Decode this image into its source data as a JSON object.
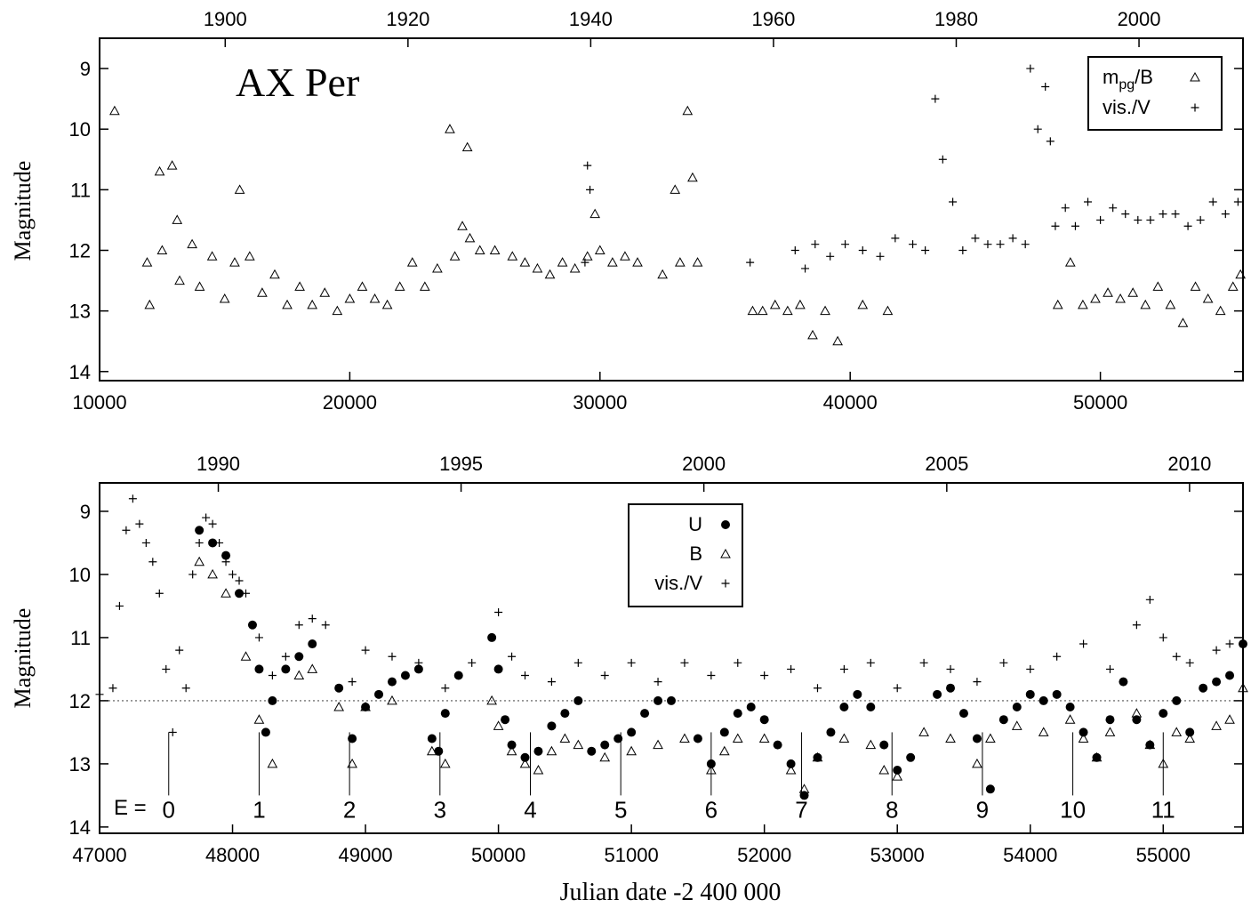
{
  "chart_data": [
    {
      "type": "scatter",
      "title": "AX Per",
      "xlabel": "",
      "ylabel": "Magnitude",
      "xlim": [
        10000,
        55700
      ],
      "ylim": [
        14.15,
        8.5
      ],
      "y_inverted": true,
      "x_ticks": [
        10000,
        20000,
        30000,
        40000,
        50000
      ],
      "y_ticks": [
        9,
        10,
        11,
        12,
        13,
        14
      ],
      "top_axis_ticks": [
        {
          "label": "1900",
          "x": 15021
        },
        {
          "label": "1920",
          "x": 22326
        },
        {
          "label": "1940",
          "x": 29630
        },
        {
          "label": "1960",
          "x": 36935
        },
        {
          "label": "1980",
          "x": 44239
        },
        {
          "label": "2000",
          "x": 51544
        }
      ],
      "legend": {
        "placement": "top-right",
        "entries": [
          {
            "label_main": "m",
            "label_sub": "pg",
            "label_rest": "/B",
            "marker": "triangle"
          },
          {
            "label_main": "vis./V",
            "label_sub": "",
            "label_rest": "",
            "marker": "plus"
          }
        ]
      },
      "series": [
        {
          "name": "mpg/B",
          "marker": "triangle",
          "x": [
            10600,
            11900,
            12000,
            12400,
            12500,
            12900,
            13100,
            13200,
            13700,
            14000,
            14500,
            15000,
            15400,
            15600,
            16000,
            16500,
            17000,
            17500,
            18000,
            18500,
            19000,
            19500,
            20000,
            20500,
            21000,
            21500,
            22000,
            22500,
            23000,
            23500,
            24000,
            24200,
            24500,
            24700,
            24800,
            25200,
            25800,
            26500,
            27000,
            27500,
            28000,
            28500,
            29000,
            29500,
            29800,
            30000,
            30500,
            31000,
            31500,
            32500,
            33000,
            33200,
            33500,
            33700,
            33900,
            36100,
            36500,
            37000,
            37500,
            38000,
            38500,
            39000,
            39500,
            40500,
            41500,
            48300,
            48800,
            49300,
            49800,
            50300,
            50800,
            51300,
            51800,
            52300,
            52800,
            53300,
            53800,
            54300,
            54800,
            55300,
            55600
          ],
          "y": [
            9.7,
            12.2,
            12.9,
            10.7,
            12.0,
            10.6,
            11.5,
            12.5,
            11.9,
            12.6,
            12.1,
            12.8,
            12.2,
            11.0,
            12.1,
            12.7,
            12.4,
            12.9,
            12.6,
            12.9,
            12.7,
            13.0,
            12.8,
            12.6,
            12.8,
            12.9,
            12.6,
            12.2,
            12.6,
            12.3,
            10.0,
            12.1,
            11.6,
            10.3,
            11.8,
            12.0,
            12.0,
            12.1,
            12.2,
            12.3,
            12.4,
            12.2,
            12.3,
            12.1,
            11.4,
            12.0,
            12.2,
            12.1,
            12.2,
            12.4,
            11.0,
            12.2,
            9.7,
            10.8,
            12.2,
            13.0,
            13.0,
            12.9,
            13.0,
            12.9,
            13.4,
            13.0,
            13.5,
            12.9,
            13.0,
            12.9,
            12.2,
            12.9,
            12.8,
            12.7,
            12.8,
            12.7,
            12.9,
            12.6,
            12.9,
            13.2,
            12.6,
            12.8,
            13.0,
            12.6,
            12.4
          ]
        },
        {
          "name": "vis./V",
          "marker": "plus",
          "x": [
            29400,
            29500,
            29600,
            36000,
            37800,
            38200,
            38600,
            39200,
            39800,
            40500,
            41200,
            41800,
            42500,
            43000,
            43400,
            43700,
            44100,
            44500,
            45000,
            45500,
            46000,
            46500,
            47000,
            47200,
            47500,
            47800,
            48000,
            48200,
            48600,
            49000,
            49500,
            50000,
            50500,
            51000,
            51500,
            52000,
            52500,
            53000,
            53500,
            54000,
            54500,
            55000,
            55500
          ],
          "y": [
            12.2,
            10.6,
            11.0,
            12.2,
            12.0,
            12.3,
            11.9,
            12.1,
            11.9,
            12.0,
            12.1,
            11.8,
            11.9,
            12.0,
            9.5,
            10.5,
            11.2,
            12.0,
            11.8,
            11.9,
            11.9,
            11.8,
            11.9,
            9.0,
            10.0,
            9.3,
            10.2,
            11.6,
            11.3,
            11.6,
            11.2,
            11.5,
            11.3,
            11.4,
            11.5,
            11.5,
            11.4,
            11.4,
            11.6,
            11.5,
            11.2,
            11.4,
            11.2
          ]
        }
      ]
    },
    {
      "type": "scatter",
      "title": "",
      "xlabel": "Julian date -2 400 000",
      "ylabel": "Magnitude",
      "xlim": [
        47000,
        55600
      ],
      "ylim": [
        14.1,
        8.55
      ],
      "y_inverted": true,
      "x_ticks": [
        47000,
        48000,
        49000,
        50000,
        51000,
        52000,
        53000,
        54000,
        55000
      ],
      "y_ticks": [
        9,
        10,
        11,
        12,
        13,
        14
      ],
      "top_axis_ticks": [
        {
          "label": "1990",
          "x": 47893
        },
        {
          "label": "1995",
          "x": 49719
        },
        {
          "label": "2000",
          "x": 51545
        },
        {
          "label": "2005",
          "x": 53372
        },
        {
          "label": "2010",
          "x": 55198
        }
      ],
      "reference_line": {
        "y": 12.0,
        "style": "dotted"
      },
      "epoch_prefix": "E =",
      "epochs": [
        {
          "label": "0",
          "x": 47520
        },
        {
          "label": "1",
          "x": 48200
        },
        {
          "label": "2",
          "x": 48880
        },
        {
          "label": "3",
          "x": 49560
        },
        {
          "label": "4",
          "x": 50240
        },
        {
          "label": "5",
          "x": 50920
        },
        {
          "label": "6",
          "x": 51600
        },
        {
          "label": "7",
          "x": 52280
        },
        {
          "label": "8",
          "x": 52960
        },
        {
          "label": "9",
          "x": 53640
        },
        {
          "label": "10",
          "x": 54320
        },
        {
          "label": "11",
          "x": 55000
        }
      ],
      "legend": {
        "placement": "top-center",
        "entries": [
          {
            "label_main": "U",
            "label_sub": "",
            "label_rest": "",
            "marker": "circle"
          },
          {
            "label_main": "B",
            "label_sub": "",
            "label_rest": "",
            "marker": "triangle"
          },
          {
            "label_main": "vis./V",
            "label_sub": "",
            "label_rest": "",
            "marker": "plus"
          }
        ]
      },
      "series": [
        {
          "name": "U",
          "marker": "circle",
          "x": [
            47750,
            47850,
            47950,
            48050,
            48150,
            48200,
            48250,
            48300,
            48400,
            48500,
            48600,
            48800,
            48900,
            49000,
            49100,
            49200,
            49300,
            49400,
            49500,
            49550,
            49600,
            49700,
            49950,
            50000,
            50050,
            50100,
            50200,
            50300,
            50400,
            50500,
            50600,
            50700,
            50800,
            50900,
            51000,
            51100,
            51200,
            51300,
            51500,
            51600,
            51700,
            51800,
            51900,
            52000,
            52100,
            52200,
            52300,
            52400,
            52500,
            52600,
            52700,
            52800,
            52900,
            53000,
            53100,
            53300,
            53400,
            53500,
            53600,
            53700,
            53800,
            53900,
            54000,
            54100,
            54200,
            54300,
            54400,
            54500,
            54600,
            54700,
            54800,
            54900,
            55000,
            55100,
            55200,
            55300,
            55400,
            55500,
            55600
          ],
          "y": [
            9.3,
            9.5,
            9.7,
            10.3,
            10.8,
            11.5,
            12.5,
            12.0,
            11.5,
            11.3,
            11.1,
            11.8,
            12.6,
            12.1,
            11.9,
            11.7,
            11.6,
            11.5,
            12.6,
            12.8,
            12.2,
            11.6,
            11.0,
            11.5,
            12.3,
            12.7,
            12.9,
            12.8,
            12.4,
            12.2,
            12.0,
            12.8,
            12.7,
            12.6,
            12.5,
            12.2,
            12.0,
            12.0,
            12.6,
            13.0,
            12.5,
            12.2,
            12.1,
            12.3,
            12.7,
            13.0,
            13.5,
            12.9,
            12.5,
            12.1,
            11.9,
            12.1,
            12.7,
            13.1,
            12.9,
            11.9,
            11.8,
            12.2,
            12.6,
            13.4,
            12.3,
            12.1,
            11.9,
            12.0,
            11.9,
            12.1,
            12.5,
            12.9,
            12.3,
            11.7,
            12.3,
            12.7,
            12.2,
            12.0,
            12.5,
            11.8,
            11.7,
            11.6,
            11.1
          ]
        },
        {
          "name": "B",
          "marker": "triangle",
          "x": [
            47750,
            47850,
            47950,
            48100,
            48200,
            48300,
            48500,
            48600,
            48800,
            48900,
            49000,
            49200,
            49500,
            49600,
            49950,
            50000,
            50100,
            50200,
            50300,
            50400,
            50500,
            50600,
            50800,
            51000,
            51200,
            51400,
            51600,
            51700,
            51800,
            52000,
            52200,
            52300,
            52400,
            52600,
            52800,
            52900,
            53000,
            53200,
            53400,
            53600,
            53700,
            53900,
            54100,
            54300,
            54400,
            54500,
            54600,
            54800,
            54900,
            55000,
            55100,
            55200,
            55400,
            55500,
            55600
          ],
          "y": [
            9.8,
            10.0,
            10.3,
            11.3,
            12.3,
            13.0,
            11.6,
            11.5,
            12.1,
            13.0,
            12.1,
            12.0,
            12.8,
            13.0,
            12.0,
            12.4,
            12.8,
            13.0,
            13.1,
            12.8,
            12.6,
            12.7,
            12.9,
            12.8,
            12.7,
            12.6,
            13.1,
            12.8,
            12.6,
            12.6,
            13.1,
            13.4,
            12.9,
            12.6,
            12.7,
            13.1,
            13.2,
            12.5,
            12.6,
            13.0,
            12.6,
            12.4,
            12.5,
            12.3,
            12.6,
            12.9,
            12.5,
            12.2,
            12.7,
            13.0,
            12.5,
            12.6,
            12.4,
            12.3,
            11.8
          ]
        },
        {
          "name": "vis./V",
          "marker": "plus",
          "x": [
            47000,
            47100,
            47150,
            47200,
            47250,
            47300,
            47350,
            47400,
            47450,
            47500,
            47550,
            47600,
            47650,
            47700,
            47750,
            47800,
            47850,
            47900,
            47950,
            48000,
            48050,
            48100,
            48150,
            48200,
            48300,
            48400,
            48500,
            48600,
            48700,
            48800,
            48900,
            49000,
            49200,
            49400,
            49600,
            49800,
            50000,
            50100,
            50200,
            50400,
            50600,
            50800,
            51000,
            51200,
            51400,
            51600,
            51800,
            52000,
            52200,
            52400,
            52600,
            52800,
            53000,
            53200,
            53400,
            53600,
            53800,
            54000,
            54200,
            54400,
            54600,
            54800,
            54900,
            55000,
            55100,
            55200,
            55400,
            55500
          ],
          "y": [
            11.9,
            11.8,
            10.5,
            9.3,
            8.8,
            9.2,
            9.5,
            9.8,
            10.3,
            11.5,
            12.5,
            11.2,
            11.8,
            10.0,
            9.5,
            9.1,
            9.2,
            9.5,
            9.8,
            10.0,
            10.1,
            10.3,
            10.8,
            11.0,
            11.6,
            11.3,
            10.8,
            10.7,
            10.8,
            11.8,
            11.7,
            11.2,
            11.3,
            11.4,
            11.8,
            11.4,
            10.6,
            11.3,
            11.6,
            11.7,
            11.4,
            11.6,
            11.4,
            11.7,
            11.4,
            11.6,
            11.4,
            11.6,
            11.5,
            11.8,
            11.5,
            11.4,
            11.8,
            11.4,
            11.5,
            11.7,
            11.4,
            11.5,
            11.3,
            11.1,
            11.5,
            10.8,
            10.4,
            11.0,
            11.3,
            11.4,
            11.2,
            11.1
          ]
        }
      ]
    }
  ]
}
